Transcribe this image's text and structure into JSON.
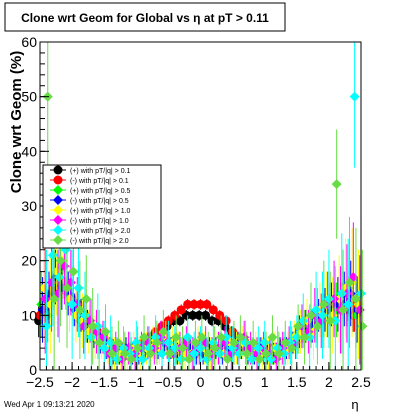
{
  "page": {
    "background": "#ffffff",
    "frame_color": "#000000"
  },
  "chart_data": {
    "type": "scatter",
    "title": "Clone wrt Geom for Global vs   η at pT > 0.11",
    "ylabel": "Clone wrt Geom (%)",
    "xlabel": "η",
    "xlim": [
      -2.5,
      2.5
    ],
    "ylim": [
      0,
      60
    ],
    "x_ticks": [
      -2.5,
      -2,
      -1.5,
      -1,
      -0.5,
      0,
      0.5,
      1,
      1.5,
      2,
      2.5
    ],
    "x_tick_labels": [
      "−2.5",
      "−2",
      "−1.5",
      "−1",
      "−0.5",
      "0",
      "0.5",
      "1",
      "1.5",
      "2",
      "2.5"
    ],
    "y_ticks": [
      0,
      10,
      20,
      30,
      40,
      50,
      60
    ],
    "y_tick_labels": [
      "0",
      "10",
      "20",
      "30",
      "40",
      "50",
      "60"
    ],
    "grid": false,
    "legend_position": "upper-left",
    "footer": "Wed Apr  1 09:13:21 2020",
    "bins": [
      -2.45,
      -2.35,
      -2.25,
      -2.15,
      -2.05,
      -1.95,
      -1.85,
      -1.75,
      -1.65,
      -1.55,
      -1.45,
      -1.35,
      -1.25,
      -1.15,
      -1.05,
      -0.95,
      -0.85,
      -0.75,
      -0.65,
      -0.55,
      -0.45,
      -0.35,
      -0.25,
      -0.15,
      -0.05,
      0.05,
      0.15,
      0.25,
      0.35,
      0.45,
      0.55,
      0.65,
      0.75,
      0.85,
      0.95,
      1.05,
      1.15,
      1.25,
      1.35,
      1.45,
      1.55,
      1.65,
      1.75,
      1.85,
      1.95,
      2.05,
      2.15,
      2.25,
      2.35,
      2.45
    ],
    "series": [
      {
        "name": "(+) with pT/|q| > 0.1",
        "color": "#000000",
        "values": [
          9,
          11,
          14,
          16,
          15,
          13,
          11,
          9,
          8,
          6,
          5,
          4,
          4,
          4,
          4,
          4,
          4,
          5,
          6,
          7,
          8,
          9,
          9,
          10,
          10,
          10,
          10,
          9,
          9,
          8,
          7,
          6,
          5,
          4,
          4,
          3,
          3,
          4,
          4,
          5,
          6,
          7,
          8,
          9,
          10,
          11,
          12,
          13,
          11,
          10
        ],
        "errors": [
          3,
          3,
          3,
          3,
          2,
          2,
          2,
          2,
          2,
          1,
          1,
          1,
          1,
          1,
          1,
          1,
          1,
          1,
          1,
          1,
          1,
          1,
          1,
          1,
          1,
          1,
          1,
          1,
          1,
          1,
          1,
          1,
          1,
          1,
          1,
          1,
          1,
          1,
          1,
          1,
          2,
          2,
          2,
          2,
          2,
          2,
          3,
          3,
          3,
          3
        ]
      },
      {
        "name": "(-) with pT/|q| > 0.1",
        "color": "#ff0000",
        "values": [
          10,
          12,
          15,
          17,
          15,
          13,
          12,
          10,
          8,
          7,
          6,
          5,
          4,
          4,
          4,
          4,
          5,
          6,
          7,
          8,
          9,
          10,
          11,
          12,
          12,
          12,
          12,
          11,
          10,
          9,
          7,
          6,
          5,
          4,
          4,
          4,
          4,
          4,
          5,
          5,
          6,
          7,
          8,
          10,
          11,
          12,
          13,
          13,
          12,
          10
        ],
        "errors": [
          3,
          3,
          3,
          3,
          2,
          2,
          2,
          2,
          2,
          1,
          1,
          1,
          1,
          1,
          1,
          1,
          1,
          1,
          1,
          1,
          1,
          1,
          1,
          1,
          1,
          1,
          1,
          1,
          1,
          1,
          1,
          1,
          1,
          1,
          1,
          1,
          1,
          1,
          1,
          1,
          2,
          2,
          2,
          2,
          2,
          2,
          3,
          3,
          3,
          3
        ]
      },
      {
        "name": "(+) with pT/|q| > 0.5",
        "color": "#00ff00",
        "values": [
          12,
          10,
          16,
          18,
          14,
          12,
          9,
          8,
          7,
          5,
          4,
          4,
          3,
          3,
          3,
          4,
          4,
          5,
          5,
          4,
          4,
          3,
          3,
          4,
          4,
          4,
          3,
          3,
          4,
          5,
          5,
          4,
          4,
          3,
          3,
          3,
          3,
          3,
          4,
          5,
          6,
          7,
          9,
          8,
          10,
          12,
          11,
          14,
          15,
          10
        ],
        "errors": [
          6,
          5,
          5,
          4,
          4,
          3,
          3,
          3,
          2,
          2,
          2,
          2,
          2,
          2,
          2,
          2,
          2,
          2,
          2,
          2,
          2,
          2,
          2,
          2,
          2,
          2,
          2,
          2,
          2,
          2,
          2,
          2,
          2,
          2,
          2,
          2,
          2,
          2,
          2,
          2,
          3,
          3,
          3,
          3,
          4,
          4,
          5,
          5,
          6,
          6
        ]
      },
      {
        "name": "(-) with pT/|q| > 0.5",
        "color": "#0000ff",
        "values": [
          11,
          13,
          17,
          15,
          14,
          11,
          10,
          8,
          6,
          5,
          4,
          3,
          3,
          4,
          3,
          3,
          4,
          5,
          4,
          5,
          4,
          3,
          4,
          4,
          3,
          3,
          4,
          4,
          3,
          4,
          5,
          4,
          3,
          3,
          4,
          3,
          3,
          4,
          4,
          5,
          7,
          8,
          8,
          10,
          11,
          12,
          12,
          13,
          14,
          11
        ],
        "errors": [
          6,
          5,
          5,
          4,
          4,
          3,
          3,
          3,
          2,
          2,
          2,
          2,
          2,
          2,
          2,
          2,
          2,
          2,
          2,
          2,
          2,
          2,
          2,
          2,
          2,
          2,
          2,
          2,
          2,
          2,
          2,
          2,
          2,
          2,
          2,
          2,
          2,
          2,
          2,
          2,
          3,
          3,
          3,
          3,
          4,
          4,
          5,
          5,
          6,
          6
        ]
      },
      {
        "name": "(+) with pT/|q| > 1.0",
        "color": "#ffff00",
        "values": [
          15,
          12,
          18,
          20,
          13,
          10,
          9,
          7,
          6,
          5,
          4,
          3,
          3,
          3,
          4,
          3,
          4,
          5,
          4,
          6,
          5,
          4,
          3,
          3,
          5,
          4,
          3,
          4,
          3,
          5,
          4,
          5,
          3,
          4,
          3,
          3,
          4,
          3,
          4,
          6,
          7,
          9,
          7,
          11,
          12,
          10,
          13,
          15,
          16,
          12
        ],
        "errors": [
          10,
          9,
          8,
          7,
          6,
          5,
          5,
          4,
          4,
          3,
          3,
          3,
          3,
          3,
          3,
          3,
          3,
          3,
          3,
          3,
          3,
          3,
          3,
          3,
          3,
          3,
          3,
          3,
          3,
          3,
          3,
          3,
          3,
          3,
          3,
          3,
          3,
          3,
          3,
          3,
          4,
          4,
          5,
          5,
          6,
          7,
          8,
          9,
          10,
          10
        ]
      },
      {
        "name": "(-) with pT/|q| > 1.0",
        "color": "#ff00ff",
        "values": [
          13,
          16,
          14,
          19,
          16,
          12,
          8,
          9,
          7,
          6,
          3,
          4,
          2,
          4,
          3,
          4,
          5,
          4,
          6,
          5,
          3,
          4,
          5,
          3,
          4,
          5,
          3,
          4,
          5,
          3,
          4,
          6,
          4,
          3,
          4,
          3,
          2,
          4,
          5,
          5,
          8,
          7,
          10,
          9,
          12,
          13,
          11,
          14,
          17,
          11
        ],
        "errors": [
          10,
          9,
          8,
          7,
          6,
          5,
          5,
          4,
          4,
          3,
          3,
          3,
          3,
          3,
          3,
          3,
          3,
          3,
          3,
          3,
          3,
          3,
          3,
          3,
          3,
          3,
          3,
          3,
          3,
          3,
          3,
          3,
          3,
          3,
          3,
          3,
          3,
          3,
          3,
          3,
          4,
          4,
          5,
          5,
          6,
          7,
          8,
          9,
          10,
          10
        ]
      },
      {
        "name": "(+) with pT/|q| > 2.0",
        "color": "#00ffff",
        "values": [
          8,
          21,
          17,
          22,
          12,
          15,
          10,
          6,
          8,
          4,
          5,
          2,
          4,
          3,
          5,
          2,
          4,
          6,
          3,
          5,
          4,
          2,
          6,
          3,
          4,
          2,
          5,
          3,
          6,
          4,
          3,
          5,
          2,
          4,
          5,
          2,
          4,
          3,
          5,
          6,
          9,
          6,
          11,
          10,
          13,
          9,
          14,
          12,
          50,
          14
        ],
        "errors": [
          14,
          13,
          12,
          11,
          10,
          9,
          8,
          7,
          6,
          5,
          5,
          4,
          4,
          4,
          4,
          4,
          4,
          4,
          4,
          4,
          4,
          4,
          4,
          4,
          4,
          4,
          4,
          4,
          4,
          4,
          4,
          4,
          4,
          4,
          4,
          4,
          4,
          4,
          4,
          4,
          5,
          6,
          7,
          8,
          9,
          10,
          11,
          12,
          13,
          14
        ]
      },
      {
        "name": "(-) with pT/|q| > 2.0",
        "color": "#66dd44",
        "values": [
          50,
          13,
          20,
          15,
          18,
          11,
          13,
          8,
          5,
          7,
          3,
          5,
          3,
          2,
          4,
          6,
          3,
          5,
          7,
          3,
          6,
          4,
          2,
          5,
          6,
          3,
          4,
          6,
          2,
          5,
          6,
          3,
          5,
          2,
          3,
          6,
          3,
          5,
          4,
          8,
          6,
          10,
          8,
          12,
          9,
          34,
          11,
          16,
          13,
          8
        ],
        "errors": [
          14,
          13,
          12,
          11,
          10,
          9,
          8,
          7,
          6,
          5,
          5,
          4,
          4,
          4,
          4,
          4,
          4,
          4,
          4,
          4,
          4,
          4,
          4,
          4,
          4,
          4,
          4,
          4,
          4,
          4,
          4,
          4,
          4,
          4,
          4,
          4,
          4,
          4,
          4,
          4,
          5,
          6,
          7,
          8,
          9,
          10,
          11,
          12,
          13,
          14
        ]
      }
    ]
  }
}
